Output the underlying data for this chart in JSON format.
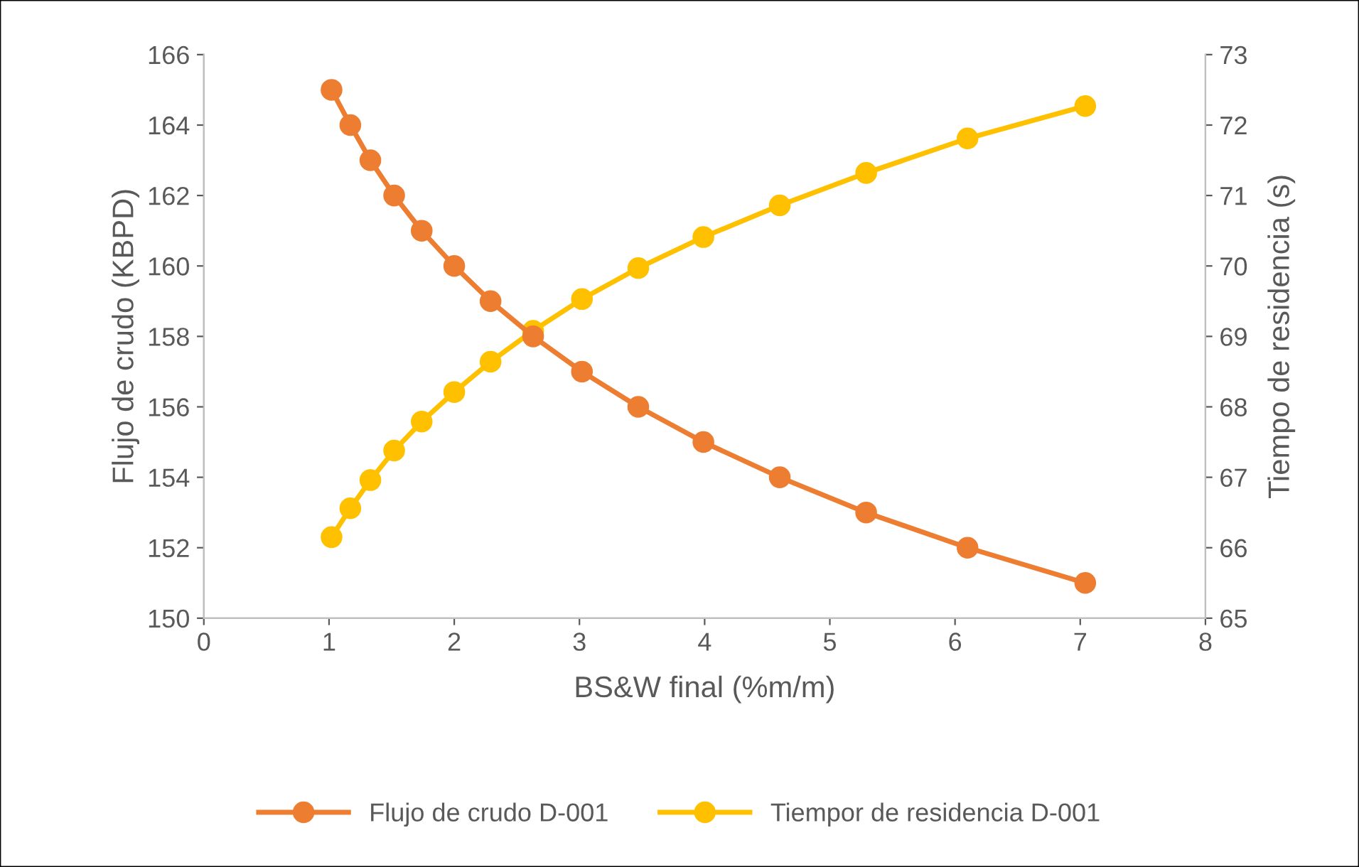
{
  "chart_data": {
    "type": "line",
    "xlabel": "BS&W final (%m/m)",
    "ylabel": "Flujo de crudo (KBPD)",
    "y2label": "Tiempo de residencia (s)",
    "x": [
      1.02,
      1.17,
      1.33,
      1.52,
      1.74,
      2.0,
      2.29,
      2.63,
      3.02,
      3.47,
      3.99,
      4.6,
      5.29,
      6.1,
      7.04
    ],
    "series": [
      {
        "name": "Flujo de crudo D-001",
        "color": "#ed7d31",
        "values": [
          165,
          164,
          163,
          162,
          161,
          160,
          159,
          158,
          157,
          156,
          155,
          154,
          153,
          152,
          151
        ]
      },
      {
        "name": "Tiempor de residencia D-001",
        "color": "#ffc000",
        "axis": "y2",
        "values": [
          66.15,
          66.56,
          66.96,
          67.38,
          67.79,
          68.21,
          68.64,
          69.08,
          69.53,
          69.97,
          70.41,
          70.86,
          71.32,
          71.81,
          72.27
        ]
      }
    ],
    "xlim": [
      0,
      8
    ],
    "xticks": [
      0,
      1,
      2,
      3,
      4,
      5,
      6,
      7,
      8
    ],
    "ylim": [
      150,
      166
    ],
    "yticks": [
      150,
      152,
      154,
      156,
      158,
      160,
      162,
      164,
      166
    ],
    "y2lim": [
      65,
      73
    ],
    "y2ticks": [
      65,
      66,
      67,
      68,
      69,
      70,
      71,
      72,
      73
    ],
    "grid": false,
    "legend": "bottom",
    "marker": "circle",
    "line_style": "solid"
  }
}
